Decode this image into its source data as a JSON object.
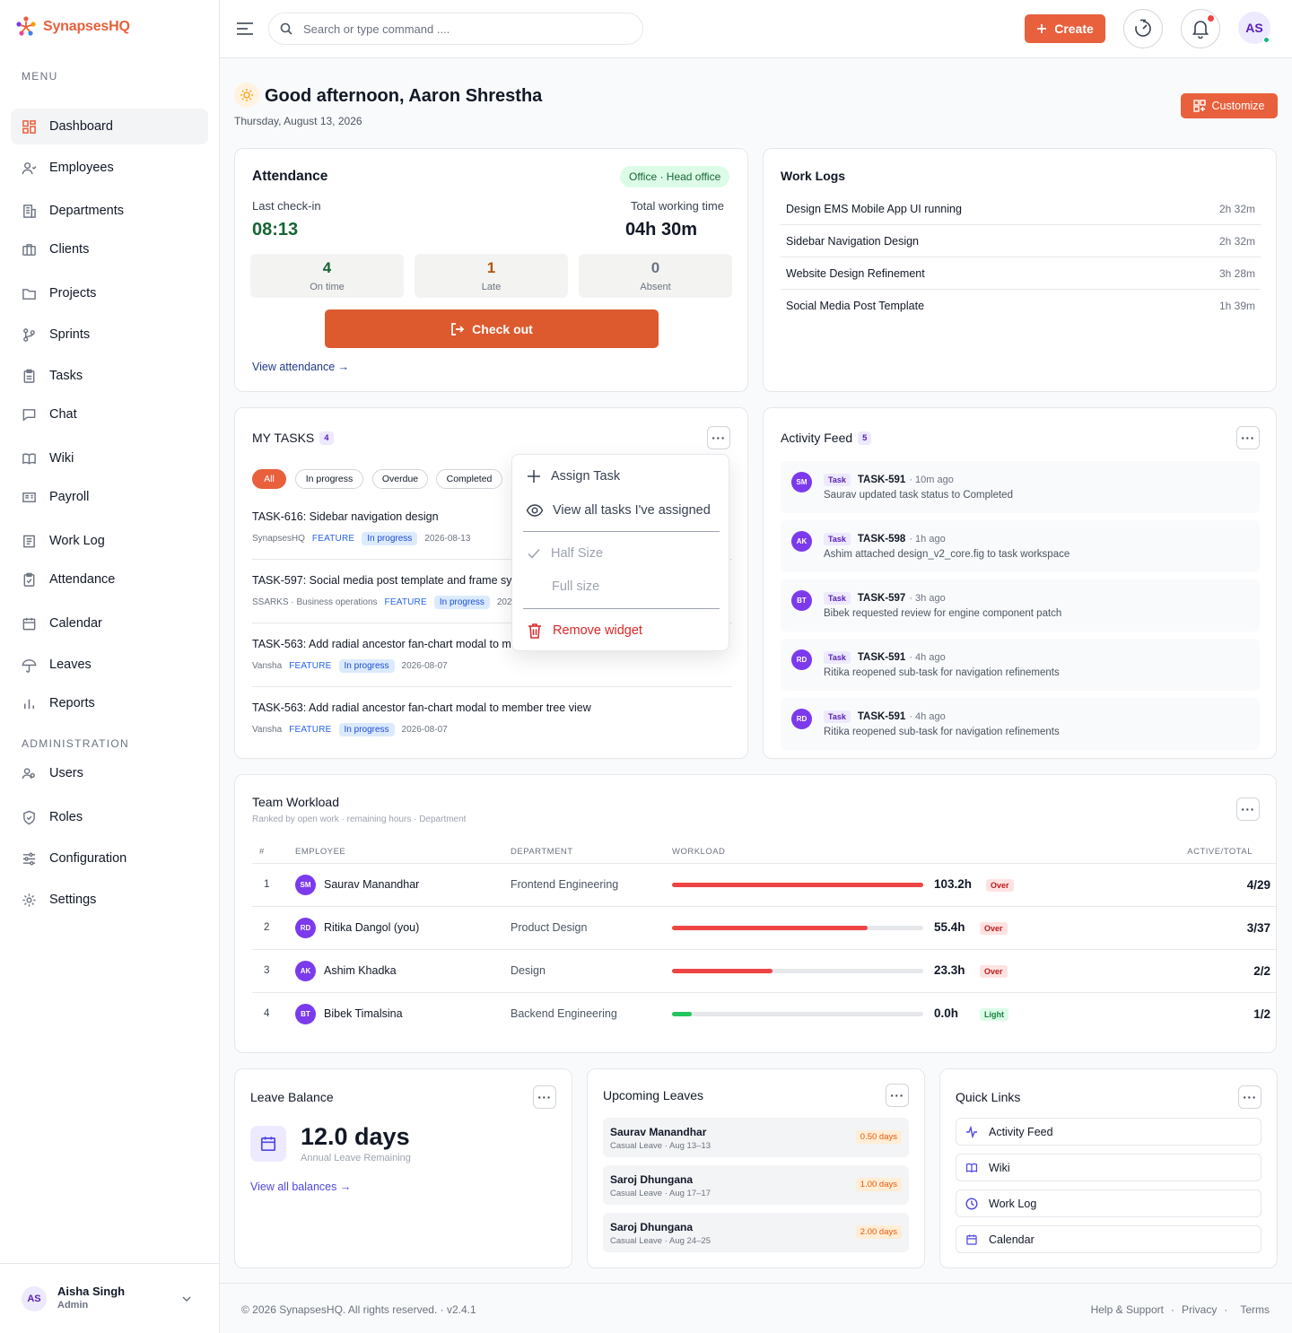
{
  "app": {
    "name": "SynapsesHQ"
  },
  "sidebar": {
    "menu_label": "MENU",
    "admin_label": "ADMINISTRATION",
    "items": [
      {
        "label": "Dashboard",
        "icon": "grid-icon"
      },
      {
        "label": "Employees",
        "icon": "user-icon"
      },
      {
        "label": "Departments",
        "icon": "building-icon"
      },
      {
        "label": "Clients",
        "icon": "briefcase-icon"
      },
      {
        "label": "Projects",
        "icon": "folder-icon"
      },
      {
        "label": "Sprints",
        "icon": "branch-icon"
      },
      {
        "label": "Tasks",
        "icon": "clipboard-icon"
      },
      {
        "label": "Chat",
        "icon": "chat-icon"
      },
      {
        "label": "Wiki",
        "icon": "book-icon"
      },
      {
        "label": "Payroll",
        "icon": "payroll-icon"
      },
      {
        "label": "Work Log",
        "icon": "log-icon"
      },
      {
        "label": "Attendance",
        "icon": "clipboard-check-icon"
      },
      {
        "label": "Calendar",
        "icon": "calendar-icon"
      },
      {
        "label": "Leaves",
        "icon": "umbrella-icon"
      },
      {
        "label": "Reports",
        "icon": "bar-chart-icon"
      }
    ],
    "admin_items": [
      {
        "label": "Users",
        "icon": "users-icon"
      },
      {
        "label": "Roles",
        "icon": "shield-icon"
      },
      {
        "label": "Configuration",
        "icon": "sliders-icon"
      },
      {
        "label": "Settings",
        "icon": "gear-icon"
      }
    ],
    "user": {
      "initials": "AS",
      "name": "Aisha Singh",
      "role": "Admin"
    }
  },
  "topbar": {
    "search_placeholder": "Search or type command ....",
    "create_label": "Create",
    "avatar_initials": "AS"
  },
  "greeting": {
    "title": "Good afternoon, Aaron Shrestha",
    "date": "Thursday, August 13, 2026",
    "customize_label": "Customize"
  },
  "attendance": {
    "title": "Attendance",
    "office_badge": "Office · Head office",
    "last_checkin_label": "Last check-in",
    "last_checkin": "08:13",
    "total_label": "Total working time",
    "total": "04h 30m",
    "stats": [
      {
        "value": "4",
        "label": "On time"
      },
      {
        "value": "1",
        "label": "Late"
      },
      {
        "value": "0",
        "label": "Absent"
      }
    ],
    "checkout_label": "Check out",
    "view_link": "View attendance →"
  },
  "worklogs": {
    "title": "Work Logs",
    "rows": [
      {
        "name": "Design EMS Mobile App UI running",
        "time": "2h 32m"
      },
      {
        "name": "Sidebar Navigation Design",
        "time": "2h 32m"
      },
      {
        "name": "Website Design Refinement",
        "time": "3h 28m"
      },
      {
        "name": "Social Media Post Template",
        "time": "1h 39m"
      }
    ]
  },
  "mytasks": {
    "title": "MY TASKS",
    "count": "4",
    "filters": [
      "All",
      "In progress",
      "Overdue",
      "Completed"
    ],
    "tasks": [
      {
        "title": "TASK-616: Sidebar navigation design",
        "project": "SynapsesHQ",
        "type": "FEATURE",
        "status": "In progress",
        "date": "2026-08-13"
      },
      {
        "title": "TASK-597: Social media post template and frame syst",
        "project": "SSARKS · Business operations",
        "type": "FEATURE",
        "status": "In progress",
        "date": "2026"
      },
      {
        "title": "TASK-563: Add radial ancestor fan-chart modal to mer",
        "project": "Vansha",
        "type": "FEATURE",
        "status": "In progress",
        "date": "2026-08-07"
      },
      {
        "title": "TASK-563: Add radial ancestor fan-chart modal to member tree view",
        "project": "Vansha",
        "type": "FEATURE",
        "status": "In progress",
        "date": "2026-08-07"
      }
    ],
    "menu": {
      "assign": "Assign Task",
      "view_assigned": "View all tasks I've assigned",
      "half": "Half Size",
      "full": "Full size",
      "remove": "Remove widget"
    }
  },
  "activity": {
    "title": "Activity Feed",
    "count": "5",
    "items": [
      {
        "initials": "SM",
        "tag": "Task",
        "id": "TASK-591",
        "ago": "· 10m ago",
        "text": "Saurav updated task status to Completed"
      },
      {
        "initials": "AK",
        "tag": "Task",
        "id": "TASK-598",
        "ago": "· 1h ago",
        "text": "Ashim attached design_v2_core.fig to task workspace"
      },
      {
        "initials": "BT",
        "tag": "Task",
        "id": "TASK-597",
        "ago": "· 3h ago",
        "text": "Bibek requested review for engine component patch"
      },
      {
        "initials": "RD",
        "tag": "Task",
        "id": "TASK-591",
        "ago": "· 4h ago",
        "text": "Ritika reopened sub-task for navigation refinements"
      },
      {
        "initials": "RD",
        "tag": "Task",
        "id": "TASK-591",
        "ago": "· 4h ago",
        "text": "Ritika reopened sub-task for navigation refinements"
      }
    ]
  },
  "workload": {
    "title": "Team Workload",
    "subtitle": "Ranked by open work · remaining hours · Department",
    "headers": {
      "rank": "#",
      "employee": "EMPLOYEE",
      "department": "DEPARTMENT",
      "workload": "WORKLOAD",
      "active": "ACTIVE/TOTAL"
    },
    "rows": [
      {
        "rank": "1",
        "initials": "SM",
        "name": "Saurav Manandhar",
        "dept": "Frontend Engineering",
        "hours": "103.2h",
        "fill": 1.0,
        "badge": "Over",
        "color": "#ef4444",
        "active": "4/29"
      },
      {
        "rank": "2",
        "initials": "RD",
        "name": "Ritika Dangol (you)",
        "dept": "Product Design",
        "hours": "55.4h",
        "fill": 0.78,
        "badge": "Over",
        "color": "#ef4444",
        "active": "3/37"
      },
      {
        "rank": "3",
        "initials": "AK",
        "name": "Ashim Khadka",
        "dept": "Design",
        "hours": "23.3h",
        "fill": 0.4,
        "badge": "Over",
        "color": "#ef4444",
        "active": "2/2"
      },
      {
        "rank": "4",
        "initials": "BT",
        "name": "Bibek Timalsina",
        "dept": "Backend Engineering",
        "hours": "0.0h",
        "fill": 0.08,
        "badge": "Light",
        "color": "#22c55e",
        "active": "1/2"
      }
    ]
  },
  "leave_balance": {
    "title": "Leave Balance",
    "days": "12.0 days",
    "label": "Annual Leave Remaining",
    "link": "View all balances →"
  },
  "upcoming": {
    "title": "Upcoming Leaves",
    "rows": [
      {
        "name": "Saurav Manandhar",
        "sub": "Casual Leave · Aug 13–13",
        "days": "0.50 days"
      },
      {
        "name": "Saroj Dhungana",
        "sub": "Casual Leave · Aug 17–17",
        "days": "1.00 days"
      },
      {
        "name": "Saroj Dhungana",
        "sub": "Casual Leave · Aug 24–25",
        "days": "2.00 days"
      }
    ]
  },
  "quicklinks": {
    "title": "Quick Links",
    "items": [
      {
        "label": "Activity Feed",
        "icon": "activity-icon"
      },
      {
        "label": "Wiki",
        "icon": "book-icon"
      },
      {
        "label": "Work Log",
        "icon": "clock-icon"
      },
      {
        "label": "Calendar",
        "icon": "calendar-icon"
      }
    ]
  },
  "footer": {
    "copyright": "© 2026 SynapsesHQ. All rights reserved. · v2.4.1",
    "help": "Help & Support",
    "privacy": "Privacy",
    "terms": "Terms"
  },
  "colors": {
    "brand": "#e8603c",
    "accent": "#4f46e5",
    "avatar": "#7c3aed"
  }
}
